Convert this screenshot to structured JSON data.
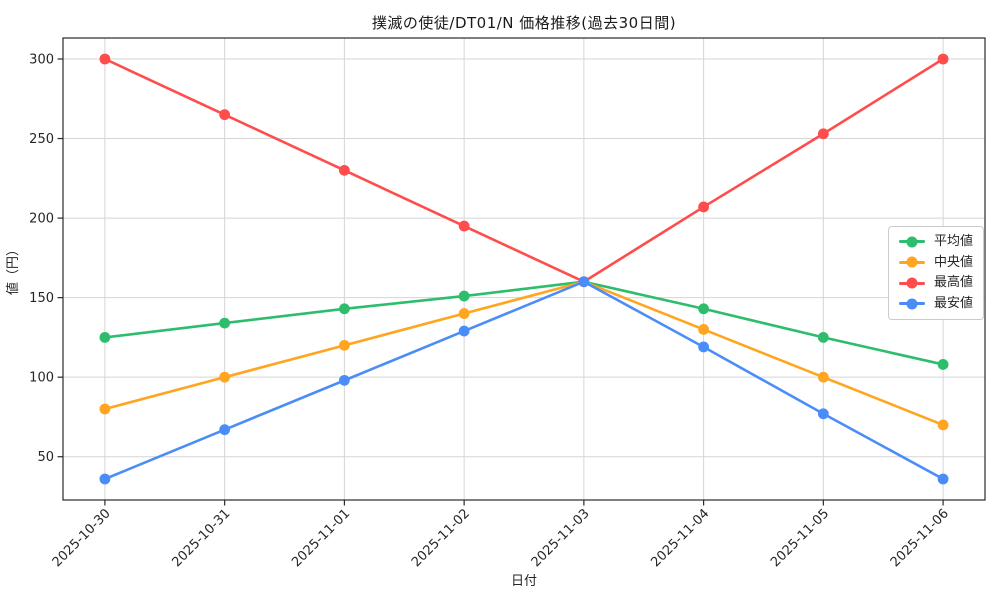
{
  "figure": {
    "background": "#ffffff",
    "axis_color": "#2a2a2a",
    "grid_color": "#d5d5d5",
    "tick_label_color": "#262626"
  },
  "chart_data": {
    "type": "line",
    "title": "撲滅の使徒/DT01/N 価格推移(過去30日間)",
    "xlabel": "日付",
    "ylabel": "値（円）",
    "categories": [
      "2025-10-30",
      "2025-10-31",
      "2025-11-01",
      "2025-11-02",
      "2025-11-03",
      "2025-11-04",
      "2025-11-05",
      "2025-11-06"
    ],
    "series": [
      {
        "key": "average",
        "name": "平均値",
        "color": "#2EBD6C",
        "values": [
          125,
          134,
          143,
          151,
          160,
          143,
          125,
          108
        ]
      },
      {
        "key": "median",
        "name": "中央値",
        "color": "#FFA51F",
        "values": [
          80,
          100,
          120,
          140,
          160,
          130,
          100,
          70
        ]
      },
      {
        "key": "max",
        "name": "最高値",
        "color": "#FF4C4C",
        "values": [
          300,
          265,
          230,
          195,
          160,
          207,
          253,
          300
        ]
      },
      {
        "key": "min",
        "name": "最安値",
        "color": "#4B8DF8",
        "values": [
          36,
          67,
          98,
          129,
          160,
          119,
          77,
          36
        ]
      }
    ],
    "yticks": [
      50,
      100,
      150,
      200,
      250,
      300
    ],
    "ylim": [
      22.8,
      313.2
    ],
    "grid": true,
    "legend_position": "middle-right",
    "marker": "circle"
  }
}
